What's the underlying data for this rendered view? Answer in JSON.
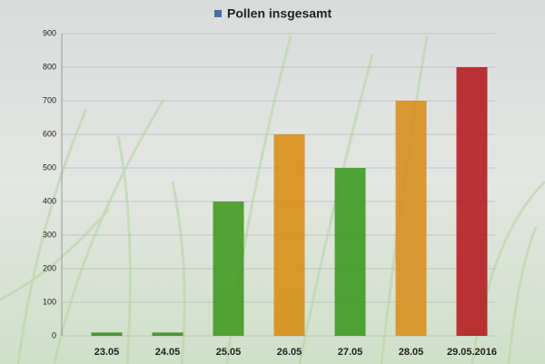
{
  "chart_data": {
    "type": "bar",
    "categories": [
      "23.05",
      "24.05",
      "25.05",
      "26.05",
      "27.05",
      "28.05",
      "29.05.2016"
    ],
    "series": [
      {
        "name": "Pollen insgesamt",
        "color": "#4a6ea8",
        "values": [
          10,
          10,
          400,
          600,
          500,
          700,
          800
        ],
        "colors": [
          "#3c8a22",
          "#3c8a22",
          "#3e9a1c",
          "#d98c12",
          "#3a981c",
          "#d98c1a",
          "#b3181e"
        ]
      }
    ],
    "ylim": [
      0,
      900
    ],
    "yticks": [
      0,
      100,
      200,
      300,
      400,
      500,
      600,
      700,
      800,
      900
    ],
    "grid": true
  }
}
